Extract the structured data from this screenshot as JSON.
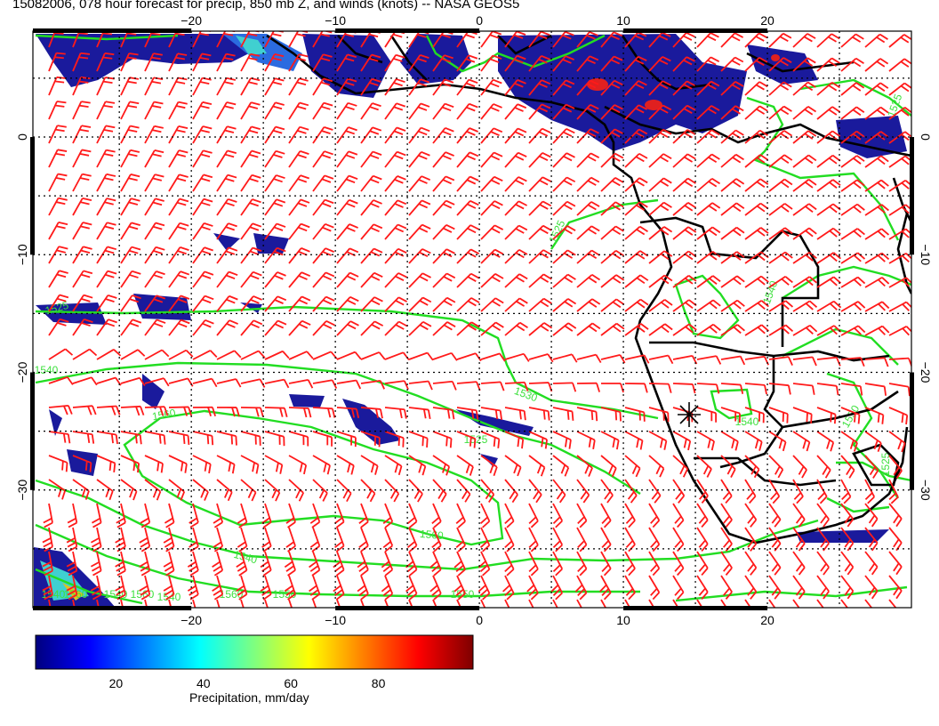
{
  "title": "15082006, 078 hour forecast for precip, 850 mb Z, and winds (knots) -- NASA GEOS5",
  "map": {
    "lon_range": [
      -31,
      30
    ],
    "lat_range": [
      -40,
      9
    ],
    "lon_ticks": [
      -20,
      -10,
      0,
      10,
      20
    ],
    "lat_ticks": [
      0,
      -10,
      -20,
      -30
    ],
    "lon_tick_labels": [
      "−20",
      "−10",
      "0",
      "10",
      "20"
    ],
    "lat_tick_labels": [
      "0",
      "−10",
      "−20",
      "−30"
    ],
    "contour_labels": [
      "1525",
      "1525",
      "1540",
      "1560",
      "1540",
      "1560",
      "1540",
      "1560",
      "1550",
      "1525",
      "1530",
      "1540",
      "1560",
      "1540",
      "1560",
      "1540",
      "1540",
      "1550",
      "1525",
      "1550",
      "1525"
    ],
    "colors": {
      "barb": "#ff1a1a",
      "contour": "#22dd22",
      "coast": "#000000",
      "grid": "#000000",
      "precip_light": "#1a1a9c",
      "precip_heavy": "#e02020"
    }
  },
  "colorbar": {
    "title": "Precipitation, mm/day",
    "range": [
      0,
      100
    ],
    "ticks": [
      20,
      40,
      60,
      80
    ],
    "tick_labels": [
      "20",
      "40",
      "60",
      "80"
    ],
    "colors": [
      "#00007f",
      "#0000ff",
      "#007fff",
      "#00ffff",
      "#7fff7f",
      "#ffff00",
      "#ff7f00",
      "#ff0000",
      "#7f0000"
    ]
  }
}
